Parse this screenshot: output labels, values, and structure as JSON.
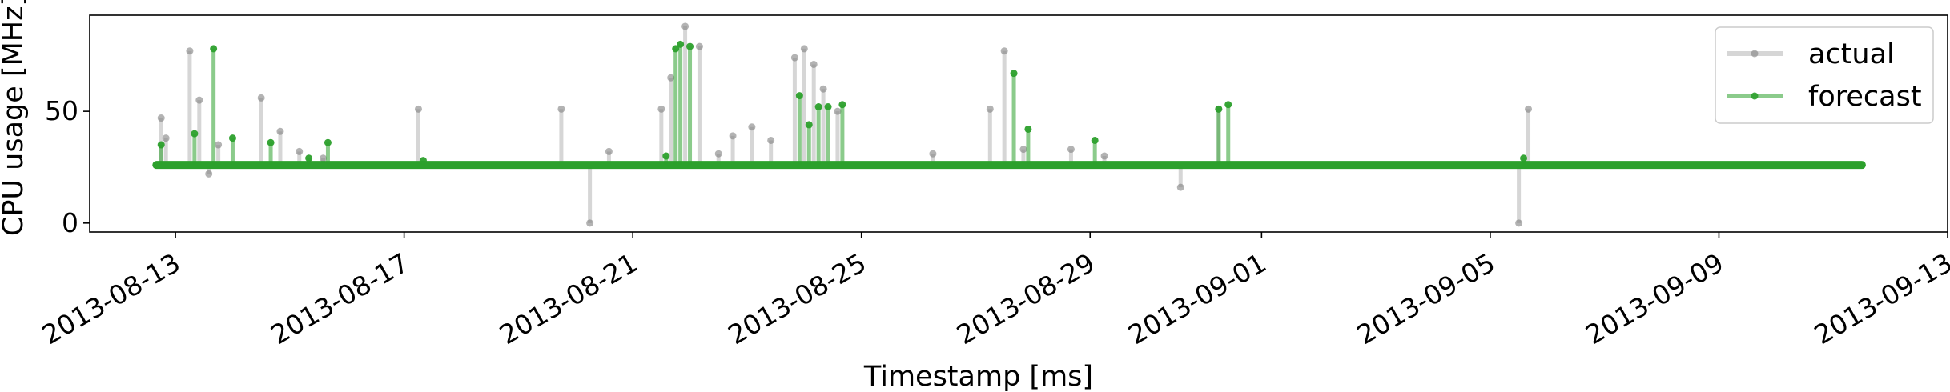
{
  "chart_data": {
    "type": "line",
    "xlabel": "Timestamp [ms]",
    "ylabel": "CPU usage [MHz]",
    "x_tick_labels": [
      "2013-08-13",
      "2013-08-17",
      "2013-08-21",
      "2013-08-25",
      "2013-08-29",
      "2013-09-01",
      "2013-09-05",
      "2013-09-09",
      "2013-09-13"
    ],
    "y_tick_labels": [
      "0",
      "50"
    ],
    "y_ticks": [
      0,
      50
    ],
    "ylim": [
      -4,
      93
    ],
    "xlim": [
      "2013-08-11T12:00",
      "2013-09-13T00:00"
    ],
    "legend": {
      "placement": "top-right"
    },
    "grid": false,
    "series": [
      {
        "name": "actual",
        "color": "#808080",
        "baseline": 26,
        "x": [
          "2013-08-12T18:00",
          "2013-08-12T20:00",
          "2013-08-13T06:00",
          "2013-08-13T10:00",
          "2013-08-13T14:00",
          "2013-08-13T18:00",
          "2013-08-14T12:00",
          "2013-08-14T20:00",
          "2013-08-15T04:00",
          "2013-08-15T14:00",
          "2013-08-17T06:00",
          "2013-08-19T18:00",
          "2013-08-20T06:00",
          "2013-08-20T14:00",
          "2013-08-21T06:00",
          "2013-08-21T12:00",
          "2013-08-21T16:00",
          "2013-08-21T22:00",
          "2013-08-22T04:00",
          "2013-08-22T12:00",
          "2013-08-22T18:00",
          "2013-08-23T02:00",
          "2013-08-23T10:00",
          "2013-08-23T20:00",
          "2013-08-24T00:00",
          "2013-08-24T04:00",
          "2013-08-24T08:00",
          "2013-08-24T14:00",
          "2013-08-26T06:00",
          "2013-08-27T06:00",
          "2013-08-27T12:00",
          "2013-08-27T20:00",
          "2013-08-28T16:00",
          "2013-08-29T06:00",
          "2013-08-30T14:00",
          "2013-08-31T06:00",
          "2013-09-05T12:00",
          "2013-09-05T16:00"
        ],
        "values": [
          47,
          38,
          77,
          55,
          22,
          35,
          56,
          41,
          32,
          29,
          51,
          51,
          0,
          32,
          26,
          51,
          65,
          88,
          79,
          31,
          39,
          43,
          37,
          74,
          78,
          71,
          60,
          50,
          31,
          51,
          77,
          33,
          33,
          30,
          16,
          51,
          0,
          51
        ]
      },
      {
        "name": "forecast",
        "color": "#2ca02c",
        "baseline": 26,
        "x": [
          "2013-08-12T18:00",
          "2013-08-13T08:00",
          "2013-08-13T16:00",
          "2013-08-14T00:00",
          "2013-08-14T16:00",
          "2013-08-15T08:00",
          "2013-08-15T16:00",
          "2013-08-17T08:00",
          "2013-08-21T14:00",
          "2013-08-21T18:00",
          "2013-08-21T20:00",
          "2013-08-22T00:00",
          "2013-08-22T06:00",
          "2013-08-23T22:00",
          "2013-08-24T02:00",
          "2013-08-24T06:00",
          "2013-08-24T10:00",
          "2013-08-24T16:00",
          "2013-08-27T16:00",
          "2013-08-27T22:00",
          "2013-08-29T02:00",
          "2013-08-31T06:00",
          "2013-08-31T10:00",
          "2013-09-05T14:00"
        ],
        "values": [
          35,
          40,
          78,
          38,
          36,
          29,
          36,
          28,
          30,
          78,
          80,
          79,
          26,
          57,
          44,
          52,
          52,
          53,
          67,
          42,
          37,
          51,
          53,
          29
        ]
      }
    ]
  }
}
